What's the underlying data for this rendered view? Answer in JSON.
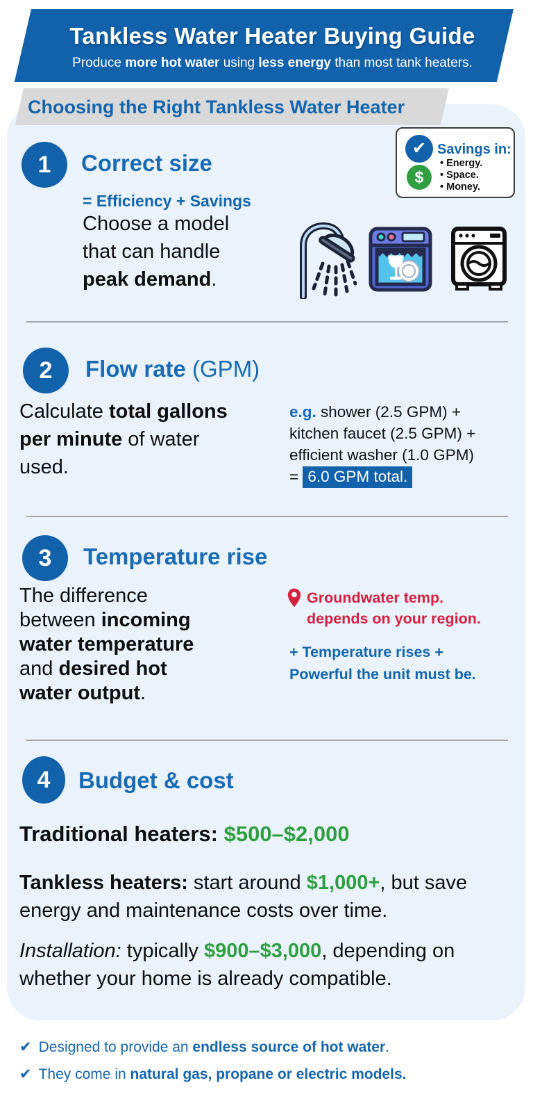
{
  "colors": {
    "brand_blue": "#1161ab",
    "heading_blue": "#1a6ab4",
    "deep_blue": "#1565ad",
    "panel_blue": "#eaf3fc",
    "ribbon_gray": "#d9d9d9",
    "red": "#d51f3f",
    "green": "#2f9e41"
  },
  "icons": {
    "check": "✔",
    "dollar": "$"
  },
  "header": {
    "title": "Tankless Water Heater Buying Guide",
    "subtitle": [
      {
        "t": "Produce "
      },
      {
        "t": "more hot water",
        "c": "b"
      },
      {
        "t": " using "
      },
      {
        "t": "less energy",
        "c": "b"
      },
      {
        "t": " than most tank heaters."
      }
    ]
  },
  "ribbon": {
    "title": "Choosing the Right Tankless Water Heater"
  },
  "savings_box": {
    "title": "Savings in:",
    "items": [
      "Energy.",
      "Space.",
      "Money."
    ]
  },
  "sections": {
    "s1": {
      "number": "1",
      "title": "Correct size",
      "tagline": "= Efficiency + Savings",
      "body": [
        {
          "t": "Choose a model"
        },
        {
          "br": true
        },
        {
          "t": "that can handle"
        },
        {
          "br": true
        },
        {
          "t": "peak demand",
          "c": "b"
        },
        {
          "t": "."
        }
      ]
    },
    "s2": {
      "number": "2",
      "title": [
        {
          "t": "Flow rate"
        },
        {
          "t": " (GPM)",
          "c": "reg"
        }
      ],
      "body": [
        {
          "t": "Calculate "
        },
        {
          "t": "total gallons",
          "c": "b"
        },
        {
          "br": true
        },
        {
          "t": "per minute",
          "c": "b"
        },
        {
          "t": " of water"
        },
        {
          "br": true
        },
        {
          "t": "used."
        }
      ],
      "example": [
        {
          "t": "e.g.",
          "c": "blue-b"
        },
        {
          "t": " shower (2.5 GPM) +"
        },
        {
          "br": true
        },
        {
          "t": "kitchen faucet (2.5 GPM) +"
        },
        {
          "br": true
        },
        {
          "t": "efficient washer (1.0 GPM)"
        },
        {
          "br": true
        },
        {
          "t": "= "
        },
        {
          "t": "6.0 GPM total.",
          "c": "hl"
        }
      ]
    },
    "s3": {
      "number": "3",
      "title": "Temperature rise",
      "body": [
        {
          "t": "The difference"
        },
        {
          "br": true
        },
        {
          "t": "between "
        },
        {
          "t": "incoming",
          "c": "b"
        },
        {
          "br": true
        },
        {
          "t": "water temperature",
          "c": "b"
        },
        {
          "br": true
        },
        {
          "t": "and "
        },
        {
          "t": "desired hot",
          "c": "b"
        },
        {
          "br": true
        },
        {
          "t": "water output",
          "c": "b"
        },
        {
          "t": "."
        }
      ],
      "note_red": [
        {
          "t": "Groundwater temp."
        },
        {
          "br": true
        },
        {
          "t": "depends on your region."
        }
      ],
      "note_blue": [
        {
          "t": "+ Temperature rises +"
        },
        {
          "br": true
        },
        {
          "t": "Powerful the unit must be."
        }
      ]
    },
    "s4": {
      "number": "4",
      "title": "Budget & cost",
      "line1": [
        {
          "t": "Traditional heaters:",
          "c": "b"
        },
        {
          "t": " "
        },
        {
          "t": "$500–$2,000",
          "c": "green-b"
        }
      ],
      "line2": [
        {
          "t": "Tankless heaters:",
          "c": "b"
        },
        {
          "t": " start around "
        },
        {
          "t": "$1,000+",
          "c": "green-b"
        },
        {
          "t": ", but save"
        },
        {
          "br": true
        },
        {
          "t": "energy and maintenance costs over time."
        }
      ],
      "line3": [
        {
          "t": "Installation:",
          "c": "i"
        },
        {
          "t": " typically "
        },
        {
          "t": "$900–$3,000",
          "c": "green-b"
        },
        {
          "t": ", depending on"
        },
        {
          "br": true
        },
        {
          "t": "whether your home is already compatible."
        }
      ]
    }
  },
  "footer": {
    "items": [
      [
        {
          "t": "Designed to provide an "
        },
        {
          "t": "endless source of hot water",
          "c": "b"
        },
        {
          "t": "."
        }
      ],
      [
        {
          "t": "They come in "
        },
        {
          "t": "natural gas, propane or electric models.",
          "c": "b"
        }
      ]
    ]
  }
}
